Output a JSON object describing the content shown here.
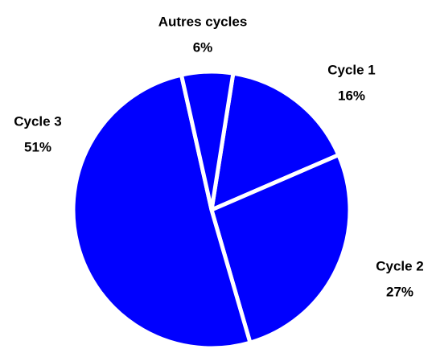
{
  "chart_data": {
    "type": "pie",
    "categories": [
      "Cycle 1",
      "Cycle 2",
      "Cycle 3",
      "Autres cycles"
    ],
    "values": [
      16,
      27,
      51,
      6
    ],
    "value_labels": [
      "16%",
      "27%",
      "51%",
      "6%"
    ],
    "color": "#0000ff"
  }
}
